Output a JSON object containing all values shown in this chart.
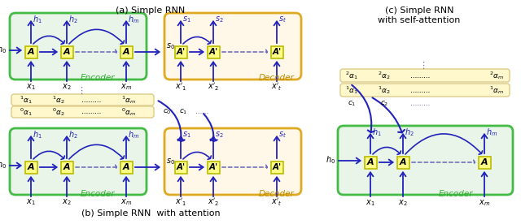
{
  "title_a": "(a) Simple RNN",
  "title_b": "(b) Simple RNN  with attention",
  "title_c": "(c) Simple RNN\nwith self-attention",
  "encoder_bg": "#e8f5e8",
  "decoder_bg": "#fff8e8",
  "box_fill": "#ffff88",
  "box_edge": "#bbbb00",
  "arrow_color": "#2222bb",
  "border_green": "#44bb44",
  "border_orange": "#ddaa22",
  "alpha_bg": "#fff8cc",
  "alpha_edge": "#ddcc88",
  "dots_color": "#6666bb"
}
